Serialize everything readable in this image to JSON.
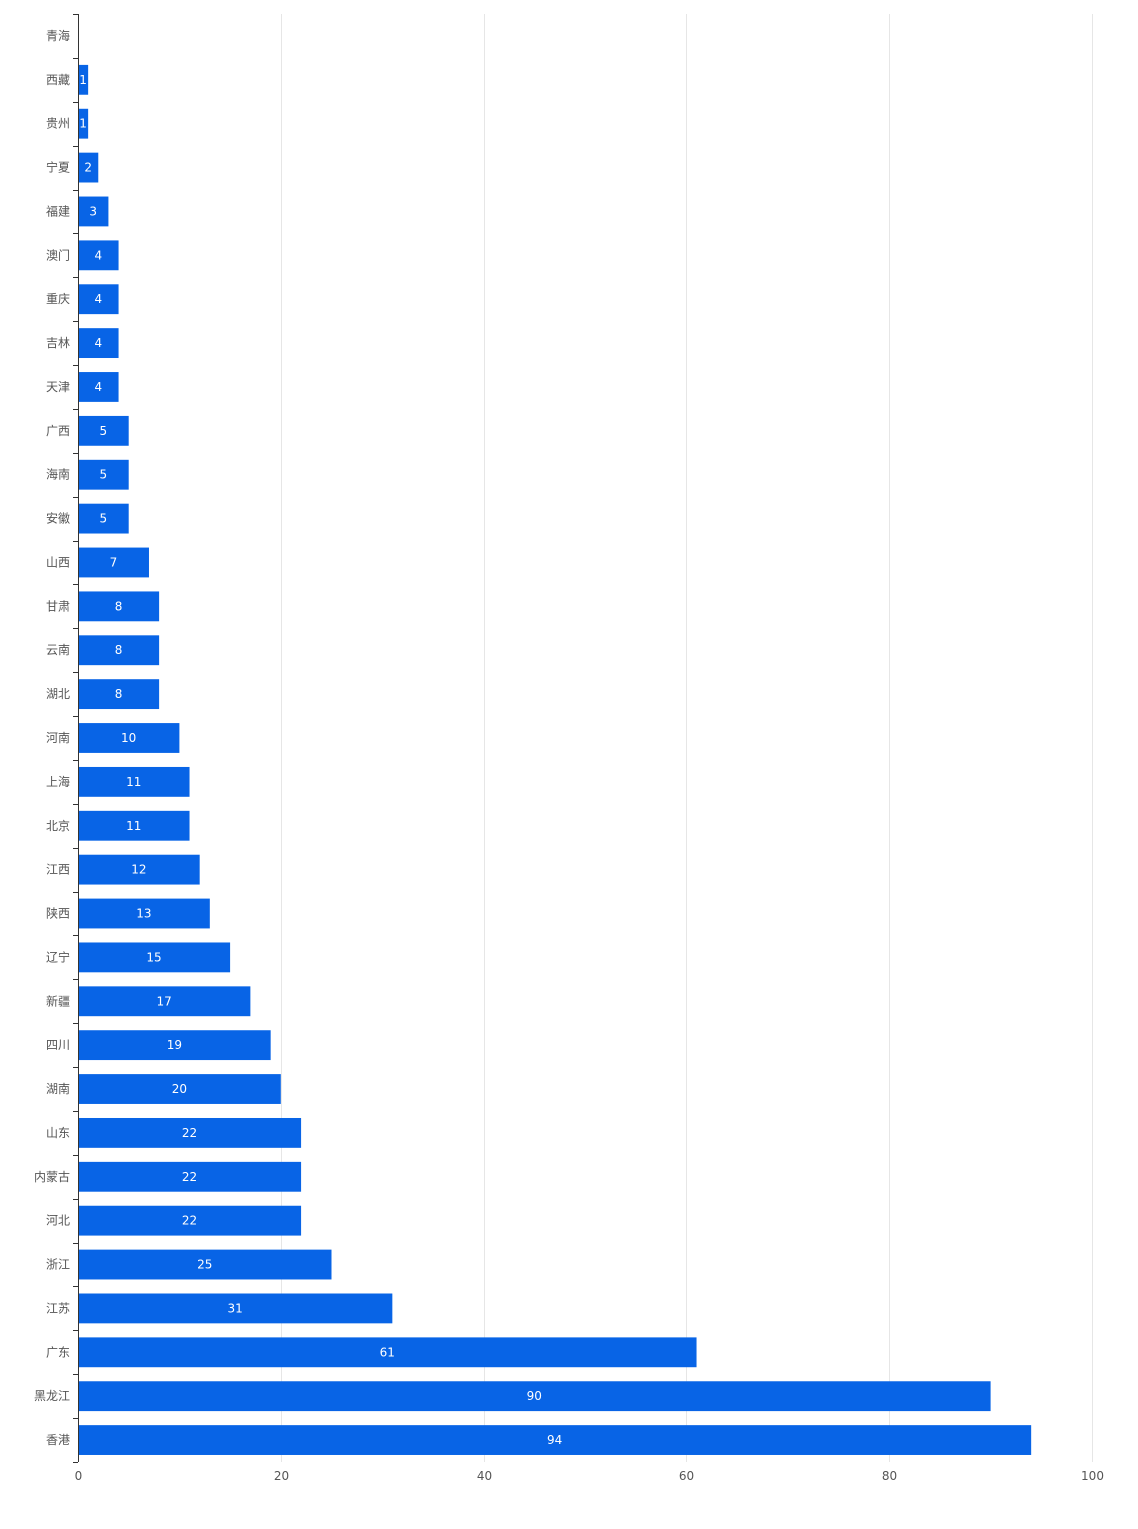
{
  "chart_data": {
    "type": "bar",
    "orientation": "horizontal",
    "categories": [
      "青海",
      "西藏",
      "贵州",
      "宁夏",
      "福建",
      "澳门",
      "重庆",
      "吉林",
      "天津",
      "广西",
      "海南",
      "安徽",
      "山西",
      "甘肃",
      "云南",
      "湖北",
      "河南",
      "上海",
      "北京",
      "江西",
      "陕西",
      "辽宁",
      "新疆",
      "四川",
      "湖南",
      "山东",
      "内蒙古",
      "河北",
      "浙江",
      "江苏",
      "广东",
      "黑龙江",
      "香港"
    ],
    "values": [
      0,
      1,
      1,
      2,
      3,
      4,
      4,
      4,
      4,
      5,
      5,
      5,
      7,
      8,
      8,
      8,
      10,
      11,
      11,
      12,
      13,
      15,
      17,
      19,
      20,
      22,
      22,
      22,
      25,
      31,
      61,
      90,
      94
    ],
    "xlim": [
      0,
      100
    ],
    "xticks": [
      0,
      20,
      40,
      60,
      80,
      100
    ],
    "title": "",
    "xlabel": "",
    "ylabel": "",
    "grid": "vertical",
    "legend": "none",
    "data_labels": "inside-center",
    "colors": {
      "bar": "#0864e6",
      "grid": "#e6e6e6",
      "axis": "#333333",
      "label_text": "#555555",
      "data_label_text": "#ffffff"
    }
  }
}
